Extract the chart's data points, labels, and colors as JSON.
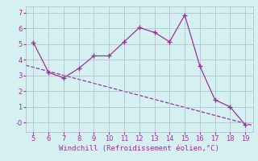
{
  "x": [
    5,
    6,
    7,
    8,
    9,
    10,
    11,
    12,
    13,
    14,
    15,
    16,
    17,
    18,
    19
  ],
  "y": [
    5.1,
    3.2,
    2.85,
    3.45,
    4.25,
    4.25,
    5.15,
    6.05,
    5.75,
    5.15,
    6.85,
    3.6,
    1.45,
    1.0,
    -0.15
  ],
  "trend_x": [
    4.5,
    19.5
  ],
  "trend_y": [
    3.65,
    -0.18
  ],
  "line_color": "#993399",
  "marker": "+",
  "background_color": "#d4f0f0",
  "grid_color": "#b0b8cc",
  "xlabel": "Windchill (Refroidissement éolien,°C)",
  "xlim": [
    4.5,
    19.5
  ],
  "ylim": [
    -0.6,
    7.4
  ],
  "xticks": [
    5,
    6,
    7,
    8,
    9,
    10,
    11,
    12,
    13,
    14,
    15,
    16,
    17,
    18,
    19
  ],
  "yticks": [
    0,
    1,
    2,
    3,
    4,
    5,
    6,
    7
  ],
  "ytick_labels": [
    "-0",
    "1",
    "2",
    "3",
    "4",
    "5",
    "6",
    "7"
  ]
}
